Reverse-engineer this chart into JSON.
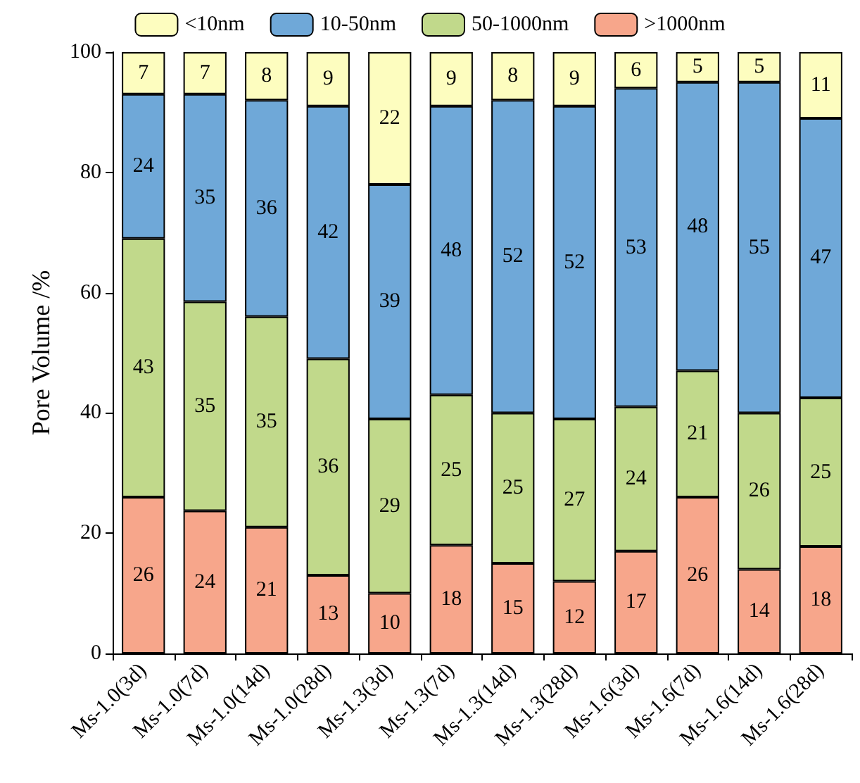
{
  "chart_data": {
    "type": "bar",
    "stacked": true,
    "ylabel": "Pore Volume /%",
    "categories": [
      "Ms-1.0(3d)",
      "Ms-1.0(7d)",
      "Ms-1.0(14d)",
      "Ms-1.0(28d)",
      "Ms-1.3(3d)",
      "Ms-1.3(7d)",
      "Ms-1.3(14d)",
      "Ms-1.3(28d)",
      "Ms-1.6(3d)",
      "Ms-1.6(7d)",
      "Ms-1.6(14d)",
      "Ms-1.6(28d)"
    ],
    "series": [
      {
        "name": ">1000nm",
        "color": "#f7a68b",
        "values": [
          26,
          23.7,
          21,
          13,
          10,
          18,
          15,
          12,
          17,
          26,
          14,
          17.8
        ],
        "value_labels": [
          "26",
          "24",
          "21",
          "13",
          "10",
          "18",
          "15",
          "12",
          "17",
          "26",
          "14",
          "18"
        ]
      },
      {
        "name": "50-1000nm",
        "color": "#c1d98b",
        "values": [
          43,
          34.8,
          35,
          36,
          29,
          25,
          25,
          27,
          24,
          21,
          26,
          24.7
        ],
        "value_labels": [
          "43",
          "35",
          "35",
          "36",
          "29",
          "25",
          "25",
          "27",
          "24",
          "21",
          "26",
          "25"
        ]
      },
      {
        "name": "10-50nm",
        "color": "#6fa8d8",
        "values": [
          24,
          34.5,
          36,
          42,
          39,
          48,
          52,
          52,
          53,
          48,
          55,
          46.5
        ],
        "value_labels": [
          "24",
          "35",
          "36",
          "42",
          "39",
          "48",
          "52",
          "52",
          "53",
          "48",
          "55",
          "47"
        ]
      },
      {
        "name": "<10nm",
        "color": "#fdfdbf",
        "values": [
          7,
          7,
          8,
          9,
          22,
          9,
          8,
          9,
          6,
          5,
          5,
          11
        ],
        "value_labels": [
          "7",
          "7",
          "8",
          "9",
          "22",
          "9",
          "8",
          "9",
          "6",
          "5",
          "5",
          "11"
        ]
      }
    ],
    "ylim": [
      0,
      100
    ],
    "yticks": [
      0,
      20,
      40,
      60,
      80,
      100
    ],
    "grid": false,
    "legend": "top"
  }
}
